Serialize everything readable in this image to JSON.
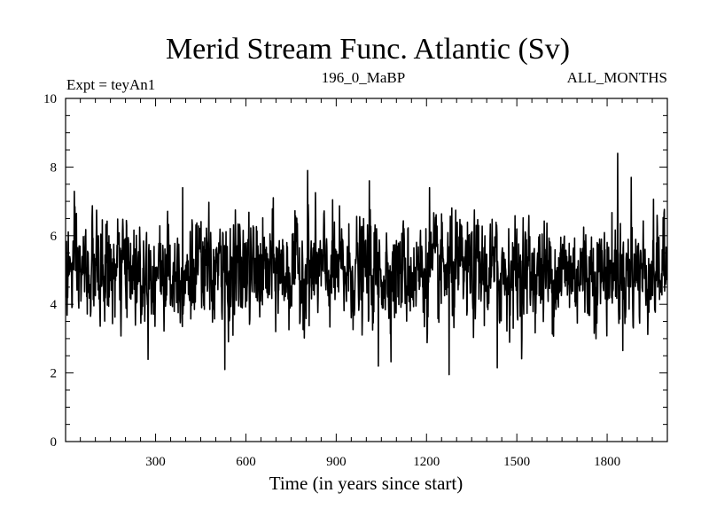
{
  "chart_data": {
    "type": "line",
    "title": "Merid Stream Func. Atlantic (Sv)",
    "subtitle_left": "Expt = teyAn1",
    "subtitle_center": "196_0_MaBP",
    "subtitle_right": "ALL_MONTHS",
    "xlabel": "Time (in years since start)",
    "ylabel": "",
    "xlim": [
      1,
      2000
    ],
    "ylim": [
      0,
      10
    ],
    "x_ticks": [
      300,
      600,
      900,
      1200,
      1500,
      1800
    ],
    "y_ticks": [
      0,
      2,
      4,
      6,
      8,
      10
    ],
    "series": [
      {
        "name": "Merid Stream Func. Atlantic",
        "color": "#000000",
        "mean": 4.95,
        "std": 0.75,
        "n_points": 2000,
        "notable_points": [
          {
            "x": 530,
            "y": 2.1
          },
          {
            "x": 805,
            "y": 7.9
          },
          {
            "x": 1040,
            "y": 2.2
          },
          {
            "x": 1275,
            "y": 1.95
          },
          {
            "x": 1435,
            "y": 2.15
          },
          {
            "x": 1835,
            "y": 8.4
          },
          {
            "x": 1880,
            "y": 7.7
          },
          {
            "x": 390,
            "y": 7.4
          },
          {
            "x": 1010,
            "y": 7.6
          },
          {
            "x": 1210,
            "y": 7.4
          }
        ]
      }
    ]
  }
}
